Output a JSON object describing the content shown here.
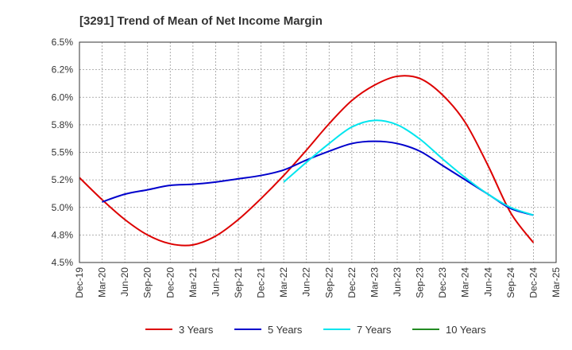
{
  "chart_data": {
    "type": "line",
    "title": "[3291]  Trend of Mean of Net Income Margin",
    "xlabel": "",
    "ylabel": "",
    "x": [
      "Dec-19",
      "Mar-20",
      "Jun-20",
      "Sep-20",
      "Dec-20",
      "Mar-21",
      "Jun-21",
      "Sep-21",
      "Dec-21",
      "Mar-22",
      "Jun-22",
      "Sep-22",
      "Dec-22",
      "Mar-23",
      "Jun-23",
      "Sep-23",
      "Dec-23",
      "Mar-24",
      "Jun-24",
      "Sep-24",
      "Dec-24",
      "Mar-25"
    ],
    "ylim": [
      4.5,
      6.5
    ],
    "y_ticks": [
      4.5,
      4.75,
      5.0,
      5.25,
      5.5,
      5.75,
      6.0,
      6.25,
      6.5
    ],
    "y_tick_labels": [
      "4.5%",
      "4.8%",
      "5.0%",
      "5.2%",
      "5.5%",
      "5.8%",
      "6.0%",
      "6.2%",
      "6.5%"
    ],
    "grid": true,
    "legend_position": "bottom",
    "series": [
      {
        "name": "3 Years",
        "color": "#dd0000",
        "values": [
          5.27,
          5.07,
          4.89,
          4.75,
          4.67,
          4.66,
          4.74,
          4.89,
          5.08,
          5.29,
          5.52,
          5.76,
          5.97,
          6.11,
          6.19,
          6.17,
          6.02,
          5.77,
          5.38,
          4.95,
          4.68,
          null
        ]
      },
      {
        "name": "5 Years",
        "color": "#0000cc",
        "values": [
          null,
          5.05,
          5.12,
          5.16,
          5.2,
          5.21,
          5.23,
          5.26,
          5.29,
          5.34,
          5.43,
          5.51,
          5.58,
          5.6,
          5.58,
          5.51,
          5.38,
          5.25,
          5.12,
          4.99,
          4.93,
          null
        ]
      },
      {
        "name": "7 Years",
        "color": "#00e5ee",
        "values": [
          null,
          null,
          null,
          null,
          null,
          null,
          null,
          null,
          null,
          5.23,
          5.41,
          5.58,
          5.73,
          5.79,
          5.75,
          5.62,
          5.44,
          5.27,
          5.12,
          5.0,
          4.93,
          null
        ]
      },
      {
        "name": "10 Years",
        "color": "#228b22",
        "values": [
          null,
          null,
          null,
          null,
          null,
          null,
          null,
          null,
          null,
          null,
          null,
          null,
          null,
          null,
          null,
          null,
          null,
          null,
          null,
          null,
          null,
          null
        ]
      }
    ]
  }
}
